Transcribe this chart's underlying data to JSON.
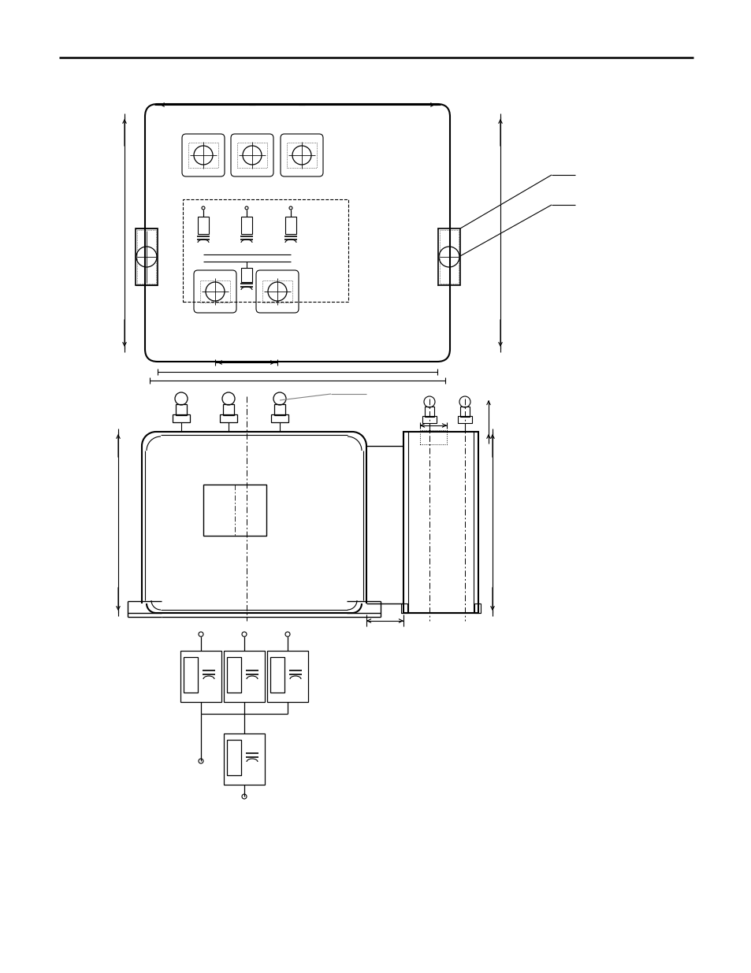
{
  "bg_color": "#ffffff",
  "line_color": "#000000",
  "page_width": 9.54,
  "page_height": 12.35
}
